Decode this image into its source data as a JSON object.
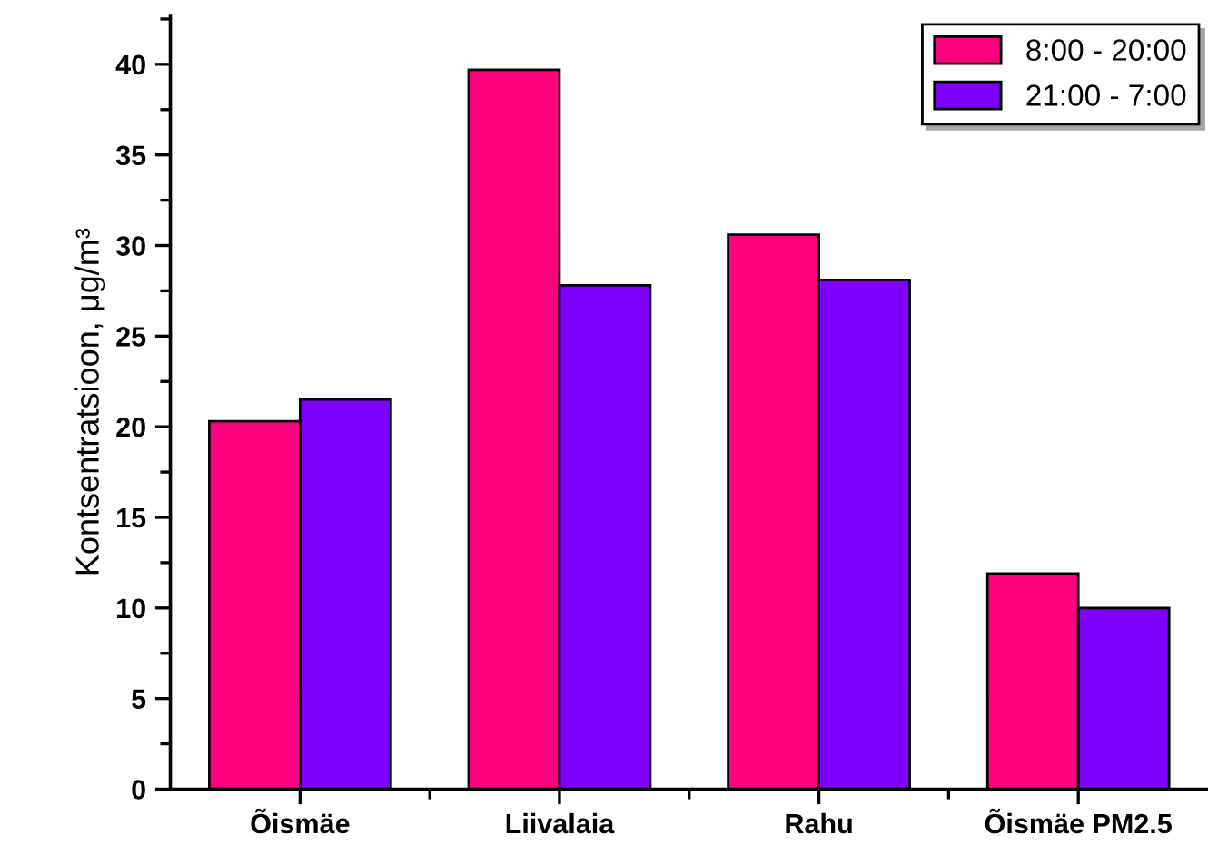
{
  "chart_data": {
    "type": "bar",
    "ylabel": "Kontsentratsioon, μg/m³",
    "categories": [
      "Õismäe",
      "Liivalaia",
      "Rahu",
      "Õismäe PM2.5"
    ],
    "series": [
      {
        "name": "8:00 - 20:00",
        "color": "#ff0080",
        "values": [
          20.3,
          39.7,
          30.6,
          11.9
        ]
      },
      {
        "name": "21:00 - 7:00",
        "color": "#8000ff",
        "values": [
          21.5,
          27.8,
          28.1,
          10.0
        ]
      }
    ],
    "ylim": [
      0,
      42.7
    ],
    "yticks": [
      0,
      5,
      10,
      15,
      20,
      25,
      30,
      35,
      40
    ],
    "grid": false,
    "legend": "top right"
  }
}
